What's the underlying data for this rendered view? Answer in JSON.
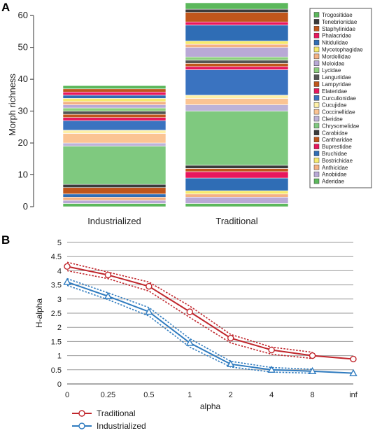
{
  "panels": {
    "a": {
      "letter": "A"
    },
    "b": {
      "letter": "B"
    }
  },
  "chart_data": [
    {
      "type": "bar",
      "stacked": true,
      "panel": "A",
      "title": "",
      "xlabel": "",
      "ylabel": "Morph richness",
      "ylim": [
        0,
        64
      ],
      "yticks": [
        0,
        10,
        20,
        30,
        40,
        50,
        60
      ],
      "grid": false,
      "legend_position": "right",
      "categories": [
        "Industrialized",
        "Traditional"
      ],
      "series": [
        {
          "name": "Aderidae",
          "color": "#5cb85c",
          "values": [
            1,
            1
          ]
        },
        {
          "name": "Anobiidae",
          "color": "#b9a9d6",
          "values": [
            1,
            2
          ]
        },
        {
          "name": "Anthicidae",
          "color": "#f4b183",
          "values": [
            1,
            1
          ]
        },
        {
          "name": "Bostrichidae",
          "color": "#f7ea6e",
          "values": [
            0,
            1
          ]
        },
        {
          "name": "Bruchidae",
          "color": "#2f6db5",
          "values": [
            1,
            4
          ]
        },
        {
          "name": "Buprestidae",
          "color": "#e8175d",
          "values": [
            0,
            2
          ]
        },
        {
          "name": "Cantharidae",
          "color": "#c0561b",
          "values": [
            2,
            1
          ]
        },
        {
          "name": "Carabidae",
          "color": "#3b3b3b",
          "values": [
            1,
            1
          ]
        },
        {
          "name": "Chrysomelidae",
          "color": "#7fc97f",
          "values": [
            12,
            17
          ]
        },
        {
          "name": "Cleridae",
          "color": "#bdb3d8",
          "values": [
            1,
            2
          ]
        },
        {
          "name": "Coccinellidae",
          "color": "#fbc493",
          "values": [
            3,
            2
          ]
        },
        {
          "name": "Cucujidae",
          "color": "#fff1a8",
          "values": [
            1,
            1
          ]
        },
        {
          "name": "Curculionidae",
          "color": "#3a73c0",
          "values": [
            3,
            8
          ]
        },
        {
          "name": "Elateridae",
          "color": "#e8175d",
          "values": [
            1,
            1
          ]
        },
        {
          "name": "Lampyridae",
          "color": "#c0561b",
          "values": [
            1,
            1
          ]
        },
        {
          "name": "Languriidae",
          "color": "#555555",
          "values": [
            1,
            1
          ]
        },
        {
          "name": "Lycidae",
          "color": "#8ccf7e",
          "values": [
            1,
            1
          ]
        },
        {
          "name": "Meloidae",
          "color": "#b9a9d6",
          "values": [
            1,
            3
          ]
        },
        {
          "name": "Mordellidae",
          "color": "#f4b183",
          "values": [
            1,
            1
          ]
        },
        {
          "name": "Mycetophagidae",
          "color": "#f7ea6e",
          "values": [
            1,
            1
          ]
        },
        {
          "name": "Nitidulidae",
          "color": "#2f6db5",
          "values": [
            1,
            5
          ]
        },
        {
          "name": "Phalacridae",
          "color": "#e8175d",
          "values": [
            1,
            1
          ]
        },
        {
          "name": "Staphylinidae",
          "color": "#c0561b",
          "values": [
            1,
            3
          ]
        },
        {
          "name": "Tenebrionidae",
          "color": "#3b3b3b",
          "values": [
            0,
            1
          ]
        },
        {
          "name": "Trogositidae",
          "color": "#5cb85c",
          "values": [
            1,
            2
          ]
        }
      ]
    },
    {
      "type": "line",
      "panel": "B",
      "title": "",
      "xlabel": "alpha",
      "ylabel": "H-alpha",
      "x": [
        "0",
        "0.25",
        "0.5",
        "1",
        "2",
        "4",
        "8",
        "inf"
      ],
      "ylim": [
        0,
        5
      ],
      "yticks": [
        0,
        0.5,
        1,
        1.5,
        2,
        2.5,
        3,
        3.5,
        4,
        4.5,
        5
      ],
      "grid": true,
      "legend_position": "bottom-left",
      "series": [
        {
          "name": "Traditional",
          "color": "#c0262c",
          "marker": "circle",
          "values": [
            4.15,
            3.85,
            3.45,
            2.55,
            1.62,
            1.2,
            1.0,
            0.88
          ],
          "ci_upper": [
            4.3,
            3.95,
            3.6,
            2.75,
            1.75,
            1.3,
            1.12,
            null
          ],
          "ci_lower": [
            4.0,
            3.72,
            3.28,
            2.35,
            1.45,
            1.05,
            0.9,
            null
          ]
        },
        {
          "name": "Industrialized",
          "color": "#2f7bbf",
          "marker": "triangle",
          "values": [
            3.6,
            3.1,
            2.55,
            1.45,
            0.7,
            0.5,
            0.45,
            0.38
          ],
          "ci_upper": [
            3.72,
            3.22,
            2.7,
            1.6,
            0.8,
            0.58,
            0.52,
            null
          ],
          "ci_lower": [
            3.48,
            2.98,
            2.4,
            1.3,
            0.6,
            0.42,
            0.38,
            null
          ]
        }
      ]
    }
  ]
}
